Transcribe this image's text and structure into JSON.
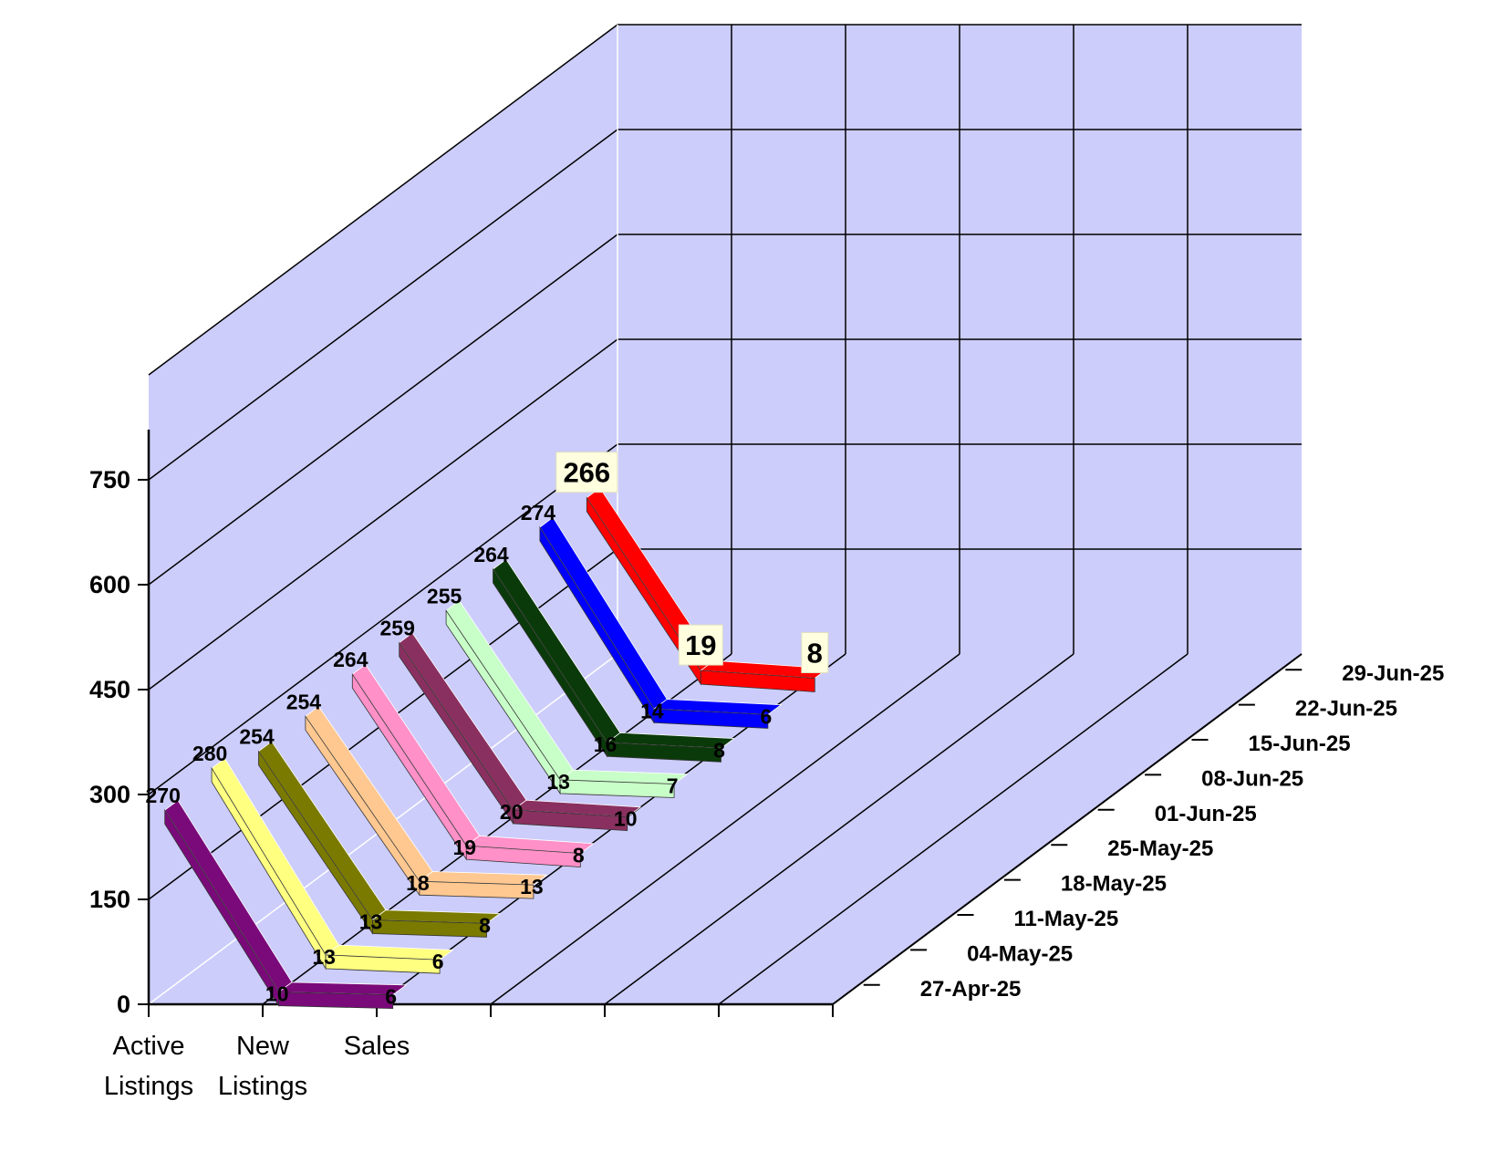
{
  "chart_data": {
    "type": "line",
    "categories": [
      "Active Listings",
      "New Listings",
      "Sales"
    ],
    "category_label_lines": [
      [
        "Active",
        "Listings"
      ],
      [
        "New",
        "Listings"
      ],
      [
        "Sales"
      ]
    ],
    "y_ticks": [
      "0",
      "150",
      "300",
      "450",
      "600",
      "750"
    ],
    "ylim": [
      0,
      900
    ],
    "grid": true,
    "series": [
      {
        "name": "27-Apr-25",
        "values": [
          270,
          10,
          6
        ],
        "color": "#7a0a7a"
      },
      {
        "name": "04-May-25",
        "values": [
          280,
          13,
          6
        ],
        "color": "#ffff80"
      },
      {
        "name": "11-May-25",
        "values": [
          254,
          13,
          8
        ],
        "color": "#7a7a00"
      },
      {
        "name": "18-May-25",
        "values": [
          254,
          18,
          13
        ],
        "color": "#ffc890"
      },
      {
        "name": "25-May-25",
        "values": [
          264,
          19,
          8
        ],
        "color": "#ff90c8"
      },
      {
        "name": "01-Jun-25",
        "values": [
          259,
          20,
          10
        ],
        "color": "#8a3060"
      },
      {
        "name": "08-Jun-25",
        "values": [
          255,
          13,
          7
        ],
        "color": "#c8ffc8"
      },
      {
        "name": "15-Jun-25",
        "values": [
          264,
          16,
          8
        ],
        "color": "#0a3a0a"
      },
      {
        "name": "22-Jun-25",
        "values": [
          274,
          14,
          6
        ],
        "color": "#0000ff"
      },
      {
        "name": "29-Jun-25",
        "values": [
          266,
          19,
          8
        ],
        "color": "#ff0000"
      }
    ],
    "highlighted_series": "29-Jun-25"
  }
}
